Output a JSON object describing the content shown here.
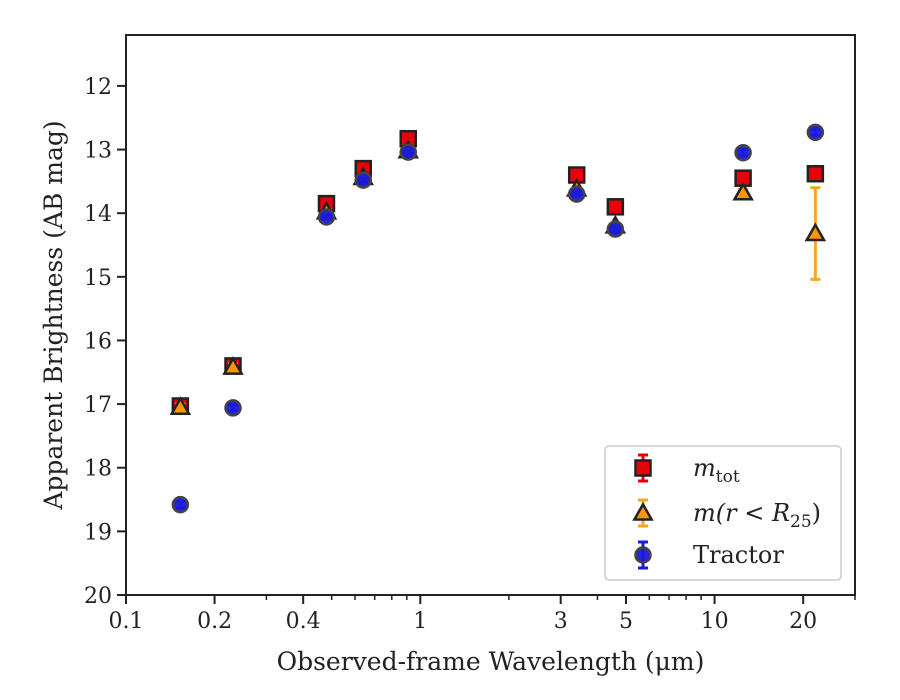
{
  "chart_data": {
    "type": "scatter",
    "xlabel": "Observed-frame Wavelength (μm)",
    "ylabel": "Apparent Brightness (AB mag)",
    "xscale": "log",
    "xlim": [
      0.1,
      30
    ],
    "ylim": [
      20,
      11.2
    ],
    "y_inverted": true,
    "x_ticks": [
      {
        "value": 0.1,
        "label": "0.1"
      },
      {
        "value": 0.2,
        "label": "0.2"
      },
      {
        "value": 0.4,
        "label": "0.4"
      },
      {
        "value": 1,
        "label": "1"
      },
      {
        "value": 3,
        "label": "3"
      },
      {
        "value": 5,
        "label": "5"
      },
      {
        "value": 10,
        "label": "10"
      },
      {
        "value": 20,
        "label": "20"
      }
    ],
    "y_ticks": [
      {
        "value": 12,
        "label": "12"
      },
      {
        "value": 13,
        "label": "13"
      },
      {
        "value": 14,
        "label": "14"
      },
      {
        "value": 15,
        "label": "15"
      },
      {
        "value": 16,
        "label": "16"
      },
      {
        "value": 17,
        "label": "17"
      },
      {
        "value": 18,
        "label": "18"
      },
      {
        "value": 19,
        "label": "19"
      },
      {
        "value": 20,
        "label": "20"
      }
    ],
    "grid": false,
    "legend": "lower-right",
    "series": [
      {
        "name": "m_tot",
        "legend_parts": {
          "main": "m",
          "sub": "tot"
        },
        "marker": "square",
        "color": "#e8000b",
        "errorbar_color": "#e8000b",
        "x": [
          0.153,
          0.231,
          0.48,
          0.64,
          0.91,
          3.4,
          4.6,
          12.5,
          22
        ],
        "y": [
          17.03,
          16.4,
          13.85,
          13.3,
          12.83,
          13.4,
          13.9,
          13.45,
          13.38
        ],
        "yerr": [
          0.05,
          0.05,
          0.03,
          0.03,
          0.03,
          0.03,
          0.03,
          0.05,
          0.05
        ]
      },
      {
        "name": "m(r<R25)",
        "legend_parts": {
          "prefix": "m(r < R",
          "sub": "25",
          "suffix": ")"
        },
        "marker": "triangle",
        "color": "#ff9500",
        "errorbar_color": "#f5a623",
        "x": [
          0.153,
          0.231,
          0.48,
          0.64,
          0.91,
          3.4,
          4.6,
          12.5,
          22
        ],
        "y": [
          17.05,
          16.42,
          13.98,
          13.44,
          13.02,
          13.62,
          14.2,
          13.68,
          14.32
        ],
        "yerr": [
          0.05,
          0.05,
          0.03,
          0.03,
          0.03,
          0.03,
          0.03,
          0.05,
          0.72
        ]
      },
      {
        "name": "Tractor",
        "marker": "circle",
        "color": "#1a1adb",
        "errorbar_color": "#1a1adb",
        "x": [
          0.153,
          0.231,
          0.48,
          0.64,
          0.91,
          3.4,
          4.6,
          12.5,
          22
        ],
        "y": [
          18.58,
          17.06,
          14.06,
          13.48,
          13.04,
          13.7,
          14.25,
          13.05,
          12.73
        ],
        "yerr": [
          0.05,
          0.05,
          0.03,
          0.03,
          0.03,
          0.03,
          0.03,
          0.05,
          0.05
        ]
      }
    ]
  }
}
